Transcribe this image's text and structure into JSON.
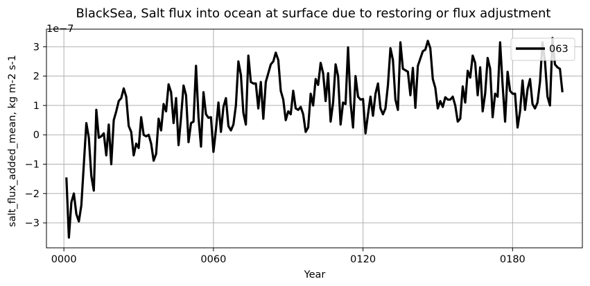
{
  "chart_data": {
    "type": "line",
    "title": "BlackSea, Salt flux into ocean at surface due to restoring or flux adjustment",
    "xlabel": "Year",
    "ylabel": "salt_flux_added_mean, kg m-2 s-1",
    "y_offset_label": "1e−7",
    "xlim": [
      -7,
      208
    ],
    "ylim": [
      -3.85,
      3.6
    ],
    "x_ticks": [
      0,
      60,
      120,
      180
    ],
    "x_tick_labels": [
      "0000",
      "0060",
      "0120",
      "0180"
    ],
    "y_ticks": [
      -3,
      -2,
      -1,
      0,
      1,
      2,
      3
    ],
    "y_tick_labels": [
      "−3",
      "−2",
      "−1",
      "0",
      "1",
      "2",
      "3"
    ],
    "grid": true,
    "legend_position": "upper-right",
    "series": [
      {
        "name": "063",
        "color": "#000000",
        "x": [
          1,
          2,
          3,
          4,
          5,
          6,
          7,
          8,
          9,
          10,
          11,
          12,
          13,
          14,
          15,
          16,
          17,
          18,
          19,
          20,
          21,
          22,
          23,
          24,
          25,
          26,
          27,
          28,
          29,
          30,
          31,
          32,
          33,
          34,
          35,
          36,
          37,
          38,
          39,
          40,
          41,
          42,
          43,
          44,
          45,
          46,
          47,
          48,
          49,
          50,
          51,
          52,
          53,
          54,
          55,
          56,
          57,
          58,
          59,
          60,
          61,
          62,
          63,
          64,
          65,
          66,
          67,
          68,
          69,
          70,
          71,
          72,
          73,
          74,
          75,
          76,
          77,
          78,
          79,
          80,
          81,
          82,
          83,
          84,
          85,
          86,
          87,
          88,
          89,
          90,
          91,
          92,
          93,
          94,
          95,
          96,
          97,
          98,
          99,
          100,
          101,
          102,
          103,
          104,
          105,
          106,
          107,
          108,
          109,
          110,
          111,
          112,
          113,
          114,
          115,
          116,
          117,
          118,
          119,
          120,
          121,
          122,
          123,
          124,
          125,
          126,
          127,
          128,
          129,
          130,
          131,
          132,
          133,
          134,
          135,
          136,
          137,
          138,
          139,
          140,
          141,
          142,
          143,
          144,
          145,
          146,
          147,
          148,
          149,
          150,
          151,
          152,
          153,
          154,
          155,
          156,
          157,
          158,
          159,
          160,
          161,
          162,
          163,
          164,
          165,
          166,
          167,
          168,
          169,
          170,
          171,
          172,
          173,
          174,
          175,
          176,
          177,
          178,
          179,
          180,
          181,
          182,
          183,
          184,
          185,
          186,
          187,
          188,
          189,
          190,
          191,
          192,
          193,
          194,
          195,
          196,
          197,
          198,
          199,
          200
        ],
        "values": [
          -1.45,
          -3.5,
          -2.3,
          -2.0,
          -2.7,
          -2.95,
          -2.4,
          -1.0,
          0.4,
          -0.1,
          -1.4,
          -1.9,
          0.85,
          -0.1,
          -0.05,
          0.05,
          -0.7,
          0.35,
          -1.0,
          0.5,
          0.8,
          1.15,
          1.25,
          1.58,
          1.3,
          0.3,
          0.1,
          -0.7,
          -0.3,
          -0.45,
          0.6,
          0.0,
          -0.05,
          0.0,
          -0.3,
          -0.88,
          -0.65,
          0.55,
          0.15,
          1.05,
          0.8,
          1.72,
          1.45,
          0.4,
          1.25,
          -0.35,
          0.6,
          1.68,
          1.35,
          -0.25,
          0.4,
          0.45,
          2.35,
          0.6,
          -0.4,
          1.45,
          0.7,
          0.58,
          0.6,
          -0.58,
          0.18,
          1.1,
          0.1,
          0.95,
          1.25,
          0.3,
          0.15,
          0.35,
          1.0,
          2.5,
          2.05,
          0.75,
          0.35,
          2.7,
          1.8,
          1.75,
          1.75,
          0.9,
          1.8,
          0.55,
          1.8,
          2.1,
          2.4,
          2.5,
          2.8,
          2.55,
          1.5,
          1.2,
          0.5,
          0.8,
          0.7,
          1.5,
          0.9,
          0.85,
          0.95,
          0.7,
          0.1,
          0.25,
          1.4,
          1.0,
          1.9,
          1.7,
          2.45,
          2.1,
          1.15,
          2.1,
          0.45,
          1.1,
          2.4,
          2.0,
          0.35,
          1.1,
          1.05,
          2.98,
          1.1,
          0.25,
          2.0,
          1.3,
          1.2,
          1.22,
          0.05,
          0.7,
          1.3,
          0.65,
          1.4,
          1.75,
          0.9,
          0.7,
          0.9,
          1.7,
          2.95,
          2.55,
          1.2,
          0.85,
          3.15,
          2.25,
          2.2,
          2.15,
          1.35,
          2.28,
          0.92,
          2.35,
          2.6,
          2.85,
          2.9,
          3.2,
          2.95,
          1.9,
          1.6,
          0.9,
          1.15,
          0.95,
          1.28,
          1.2,
          1.2,
          1.3,
          1.0,
          0.45,
          0.55,
          1.65,
          1.1,
          2.18,
          1.95,
          2.7,
          2.45,
          1.35,
          2.3,
          0.8,
          1.4,
          2.62,
          2.25,
          0.6,
          1.4,
          1.3,
          3.15,
          1.7,
          0.45,
          2.15,
          1.5,
          1.4,
          1.4,
          0.25,
          0.8,
          1.85,
          0.85,
          1.55,
          1.9,
          1.05,
          0.9,
          1.1,
          1.8,
          3.15,
          2.5,
          1.3,
          1.0,
          3.3,
          2.4,
          2.3,
          2.25,
          1.45
        ]
      }
    ]
  }
}
